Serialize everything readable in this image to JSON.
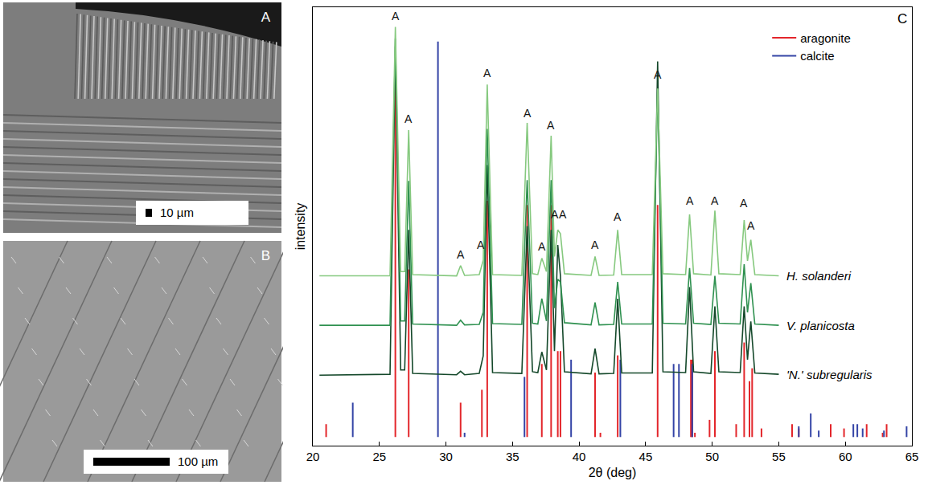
{
  "images": [
    {
      "letter": "A",
      "scale_bar": "10 µm"
    },
    {
      "letter": "B",
      "scale_bar": "100 µm"
    }
  ],
  "chart_data": {
    "type": "line",
    "panel_letter": "C",
    "x_label": "2θ (deg)",
    "y_label": "intensity",
    "xlim": [
      20,
      65
    ],
    "xticks": [
      20,
      25,
      30,
      35,
      40,
      45,
      50,
      55,
      60,
      65
    ],
    "ylim": [
      -2,
      100
    ],
    "tick_labels": "x",
    "grid": false,
    "legend": "top right",
    "x": [
      20.5,
      25.8,
      26.2,
      26.6,
      26.9,
      27.2,
      27.5,
      30.8,
      31.1,
      31.4,
      32.5,
      32.8,
      33.1,
      33.5,
      35.7,
      36.1,
      36.5,
      36.9,
      37.2,
      37.55,
      37.9,
      38.15,
      38.4,
      38.6,
      38.9,
      40.9,
      41.2,
      41.5,
      42.6,
      42.9,
      43.2,
      45.5,
      45.9,
      46.3,
      48.0,
      48.3,
      48.6,
      49.9,
      50.2,
      50.5,
      52.1,
      52.4,
      52.65,
      52.9,
      53.2,
      55.0
    ],
    "series": [
      {
        "name": "H. solanderi",
        "color": "#86c97f",
        "values": [
          37.5,
          37.5,
          95.4,
          38.5,
          38.5,
          71.4,
          37.8,
          37.5,
          39.9,
          37.6,
          37.8,
          41.1,
          82.0,
          37.8,
          37.6,
          73.1,
          38.0,
          37.8,
          41.6,
          38.5,
          70.1,
          42.0,
          48.2,
          47.3,
          38.0,
          37.6,
          42.0,
          37.6,
          37.7,
          48.2,
          37.8,
          37.8,
          81.1,
          38.0,
          37.8,
          51.8,
          38.0,
          37.7,
          52.7,
          38.0,
          37.8,
          50.5,
          41.0,
          45.9,
          37.8,
          37.5
        ]
      },
      {
        "name": "V. planicosta",
        "color": "#2f9150",
        "values": [
          26.0,
          26.0,
          92.7,
          27.0,
          27.0,
          59.6,
          26.3,
          26.0,
          27.2,
          26.1,
          26.2,
          29.0,
          71.7,
          26.4,
          26.2,
          59.8,
          26.5,
          26.3,
          32.2,
          27.0,
          59.8,
          30.0,
          36.7,
          36.1,
          26.6,
          26.1,
          31.3,
          26.1,
          26.2,
          36.1,
          26.3,
          26.3,
          81.1,
          26.5,
          26.3,
          39.3,
          26.5,
          26.2,
          37.5,
          26.5,
          26.3,
          40.2,
          29.0,
          35.8,
          26.3,
          26.0
        ]
      },
      {
        "name": "'N.' subregularis",
        "color": "#14482a",
        "values": [
          14.4,
          14.6,
          90.9,
          15.6,
          15.6,
          48.2,
          14.8,
          14.5,
          15.3,
          14.5,
          14.8,
          18.9,
          63.3,
          15.0,
          14.8,
          49.1,
          15.2,
          15.0,
          19.8,
          15.6,
          48.2,
          20.0,
          44.7,
          37.5,
          15.2,
          14.7,
          20.6,
          14.7,
          14.8,
          32.2,
          14.9,
          14.9,
          87.4,
          15.2,
          15.0,
          34.9,
          15.2,
          14.8,
          30.4,
          15.2,
          15.0,
          30.4,
          18.0,
          26.9,
          14.9,
          14.6
        ]
      }
    ],
    "reference": [
      {
        "name": "aragonite",
        "color": "#e3262b",
        "x": [
          21.0,
          26.2,
          27.2,
          31.1,
          32.7,
          33.1,
          36.1,
          37.2,
          37.9,
          38.4,
          38.6,
          41.2,
          41.6,
          42.9,
          45.9,
          48.4,
          48.5,
          48.7,
          49.8,
          50.2,
          51.8,
          52.4,
          52.8,
          53.0,
          53.7,
          56.0,
          56.5,
          58.9,
          59.9,
          61.6,
          62.8,
          63.1
        ],
        "values": [
          3,
          82,
          39,
          8,
          11,
          55,
          54,
          17,
          54,
          20,
          20,
          15,
          1,
          19,
          54,
          18,
          18,
          1,
          4,
          20,
          3,
          22,
          13,
          16,
          2,
          3,
          2,
          3,
          2,
          3,
          1,
          3
        ]
      },
      {
        "name": "calcite",
        "color": "#3444a6",
        "x": [
          23.0,
          29.4,
          31.4,
          35.9,
          39.4,
          43.1,
          47.1,
          47.5,
          48.5,
          56.5,
          57.4,
          58.0,
          60.6,
          60.9,
          61.3,
          62.9,
          64.6
        ],
        "values": [
          8,
          92,
          1,
          14,
          18,
          18,
          17,
          17,
          17,
          2.5,
          5.5,
          1.5,
          3,
          3,
          2,
          1.5,
          2.5
        ]
      }
    ],
    "annotations": [
      {
        "x": 26.2,
        "y": 98.0,
        "text": "A"
      },
      {
        "x": 27.2,
        "y": 74.0,
        "text": "A"
      },
      {
        "x": 31.1,
        "y": 42.5,
        "text": "A"
      },
      {
        "x": 32.6,
        "y": 44.7,
        "text": "A"
      },
      {
        "x": 33.1,
        "y": 84.7,
        "text": "A"
      },
      {
        "x": 36.1,
        "y": 75.3,
        "text": "A"
      },
      {
        "x": 37.2,
        "y": 44.3,
        "text": "A"
      },
      {
        "x": 37.9,
        "y": 72.6,
        "text": "A"
      },
      {
        "x": 38.2,
        "y": 51.8,
        "text": "A"
      },
      {
        "x": 38.8,
        "y": 51.8,
        "text": "A"
      },
      {
        "x": 41.2,
        "y": 44.7,
        "text": "A"
      },
      {
        "x": 42.9,
        "y": 51.2,
        "text": "A"
      },
      {
        "x": 45.9,
        "y": 84.3,
        "text": "A"
      },
      {
        "x": 48.3,
        "y": 55.0,
        "text": "A"
      },
      {
        "x": 50.2,
        "y": 55.0,
        "text": "A"
      },
      {
        "x": 52.4,
        "y": 54.4,
        "text": "A"
      },
      {
        "x": 52.9,
        "y": 49.1,
        "text": "A"
      }
    ]
  }
}
